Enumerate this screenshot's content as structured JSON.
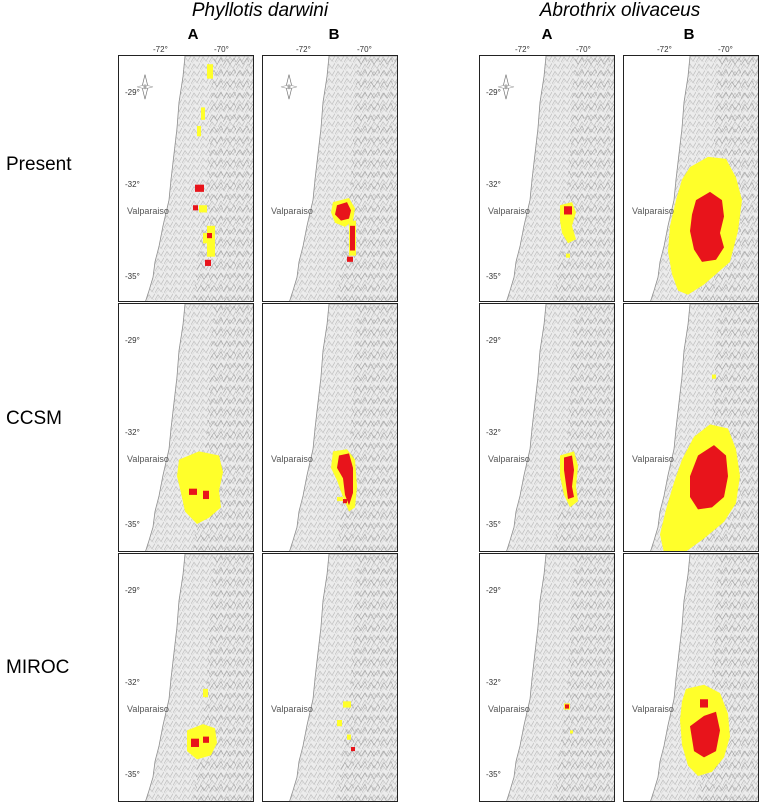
{
  "species": [
    "Phyllotis darwini",
    "Abrothrix olivaceus"
  ],
  "columns": [
    "A",
    "B",
    "A",
    "B"
  ],
  "lon_ticks": [
    "-72°",
    "-70°"
  ],
  "lat_ticks": [
    "-29°",
    "-32°",
    "-35°"
  ],
  "rows": [
    "Present",
    "CCSM",
    "MIROC"
  ],
  "city": "Valparaiso",
  "colors": {
    "high": "#e8141b",
    "low": "#ffff2a",
    "relief": "#d9d9d9",
    "sea": "#ffffff"
  },
  "icons": [
    "compass-rose-icon"
  ]
}
